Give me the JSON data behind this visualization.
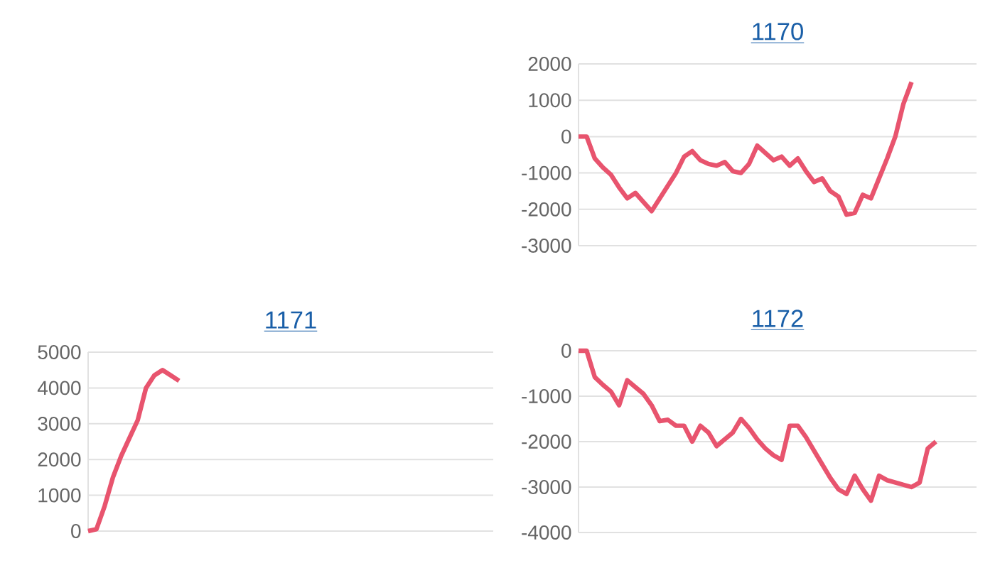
{
  "chart_data": [
    {
      "type": "line",
      "title": "1170",
      "color": "#e8546e",
      "grid": "y",
      "marker": "none",
      "line_style": "solid",
      "tick_labels": "y",
      "categories": [
        null,
        null,
        null,
        null,
        null,
        null,
        null,
        null,
        null,
        null,
        null,
        null,
        null,
        null,
        null,
        null,
        null,
        null,
        null,
        null,
        null,
        null,
        null,
        null,
        null,
        null,
        null,
        null,
        null,
        null,
        null,
        null,
        null,
        null,
        null,
        null,
        null,
        null,
        null,
        null,
        null,
        null,
        null,
        null,
        null,
        null,
        null,
        null,
        null,
        null
      ],
      "values": [
        0,
        0,
        -600,
        -850,
        -1050,
        -1400,
        -1700,
        -1550,
        -1800,
        -2050,
        -1700,
        -1350,
        -1000,
        -550,
        -400,
        -650,
        -750,
        -800,
        -700,
        -950,
        -1000,
        -750,
        -250,
        -450,
        -650,
        -550,
        -800,
        -600,
        -950,
        -1250,
        -1150,
        -1500,
        -1650,
        -2150,
        -2100,
        -1600,
        -1700,
        -1150,
        -600,
        0,
        900,
        1500,
        null,
        null,
        null,
        null,
        null,
        null,
        null,
        null
      ],
      "ylim": [
        -3000,
        2000
      ],
      "yticks": [
        -3000,
        -2000,
        -1000,
        0,
        1000,
        2000
      ]
    },
    {
      "type": "line",
      "title": "1171",
      "color": "#e8546e",
      "grid": "y",
      "marker": "none",
      "line_style": "solid",
      "tick_labels": "y",
      "categories": [
        null,
        null,
        null,
        null,
        null,
        null,
        null,
        null,
        null,
        null,
        null,
        null,
        null,
        null,
        null,
        null,
        null,
        null,
        null,
        null,
        null,
        null,
        null,
        null,
        null,
        null,
        null,
        null,
        null,
        null,
        null,
        null,
        null,
        null,
        null,
        null,
        null,
        null,
        null,
        null,
        null,
        null,
        null,
        null,
        null,
        null,
        null,
        null,
        null,
        null
      ],
      "values": [
        0,
        50,
        700,
        1500,
        2100,
        2600,
        3100,
        4000,
        4350,
        4500,
        4350,
        4200,
        null,
        null,
        null,
        null,
        null,
        null,
        null,
        null,
        null,
        null,
        null,
        null,
        null,
        null,
        null,
        null,
        null,
        null,
        null,
        null,
        null,
        null,
        null,
        null,
        null,
        null,
        null,
        null,
        null,
        null,
        null,
        null,
        null,
        null,
        null,
        null,
        null,
        null
      ],
      "ylim": [
        0,
        5000
      ],
      "yticks": [
        0,
        1000,
        2000,
        3000,
        4000,
        5000
      ]
    },
    {
      "type": "line",
      "title": "1172",
      "color": "#e8546e",
      "grid": "y",
      "marker": "none",
      "line_style": "solid",
      "tick_labels": "y",
      "categories": [
        null,
        null,
        null,
        null,
        null,
        null,
        null,
        null,
        null,
        null,
        null,
        null,
        null,
        null,
        null,
        null,
        null,
        null,
        null,
        null,
        null,
        null,
        null,
        null,
        null,
        null,
        null,
        null,
        null,
        null,
        null,
        null,
        null,
        null,
        null,
        null,
        null,
        null,
        null,
        null,
        null,
        null,
        null,
        null,
        null,
        null,
        null,
        null,
        null,
        null
      ],
      "values": [
        0,
        0,
        -580,
        -750,
        -900,
        -1200,
        -650,
        -800,
        -950,
        -1200,
        -1550,
        -1520,
        -1650,
        -1650,
        -2000,
        -1650,
        -1800,
        -2100,
        -1950,
        -1800,
        -1500,
        -1700,
        -1950,
        -2150,
        -2300,
        -2400,
        -1650,
        -1650,
        -1900,
        -2200,
        -2500,
        -2800,
        -3050,
        -3150,
        -2750,
        -3050,
        -3300,
        -2750,
        -2850,
        -2900,
        -2950,
        -3000,
        -2900,
        -2150,
        -2000,
        null,
        null,
        null,
        null,
        null
      ],
      "ylim": [
        -4000,
        0
      ],
      "yticks": [
        -4000,
        -3000,
        -2000,
        -1000,
        0
      ]
    }
  ]
}
